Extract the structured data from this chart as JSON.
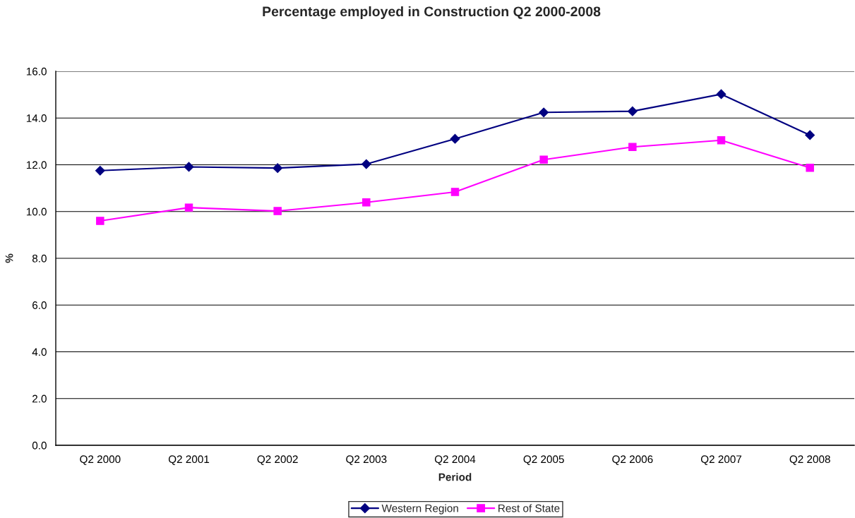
{
  "chart_data": {
    "type": "line",
    "title": "Percentage employed in Construction Q2 2000-2008",
    "xlabel": "Period",
    "ylabel": "%",
    "categories": [
      "Q2 2000",
      "Q2 2001",
      "Q2 2002",
      "Q2 2003",
      "Q2 2004",
      "Q2 2005",
      "Q2 2006",
      "Q2 2007",
      "Q2 2008"
    ],
    "series": [
      {
        "name": "Western Region",
        "color": "#000080",
        "marker": "diamond",
        "values": [
          11.75,
          11.91,
          11.86,
          12.03,
          13.11,
          14.24,
          14.29,
          15.02,
          13.27
        ]
      },
      {
        "name": "Rest of State",
        "color": "#ff00ff",
        "marker": "square",
        "values": [
          9.6,
          10.17,
          10.02,
          10.39,
          10.84,
          12.22,
          12.76,
          13.05,
          11.87
        ]
      }
    ],
    "ylim": [
      0,
      16
    ],
    "yticks": [
      {
        "value": 0,
        "label": "0.0"
      },
      {
        "value": 2,
        "label": "2.0"
      },
      {
        "value": 4,
        "label": "4.0"
      },
      {
        "value": 6,
        "label": "6.0"
      },
      {
        "value": 8,
        "label": "8.0"
      },
      {
        "value": 10,
        "label": "10.0"
      },
      {
        "value": 12,
        "label": "12.0"
      },
      {
        "value": 14,
        "label": "14.0"
      },
      {
        "value": 16,
        "label": "16.0"
      }
    ],
    "grid": "y",
    "legend": "bottom",
    "line_style": "solid"
  }
}
